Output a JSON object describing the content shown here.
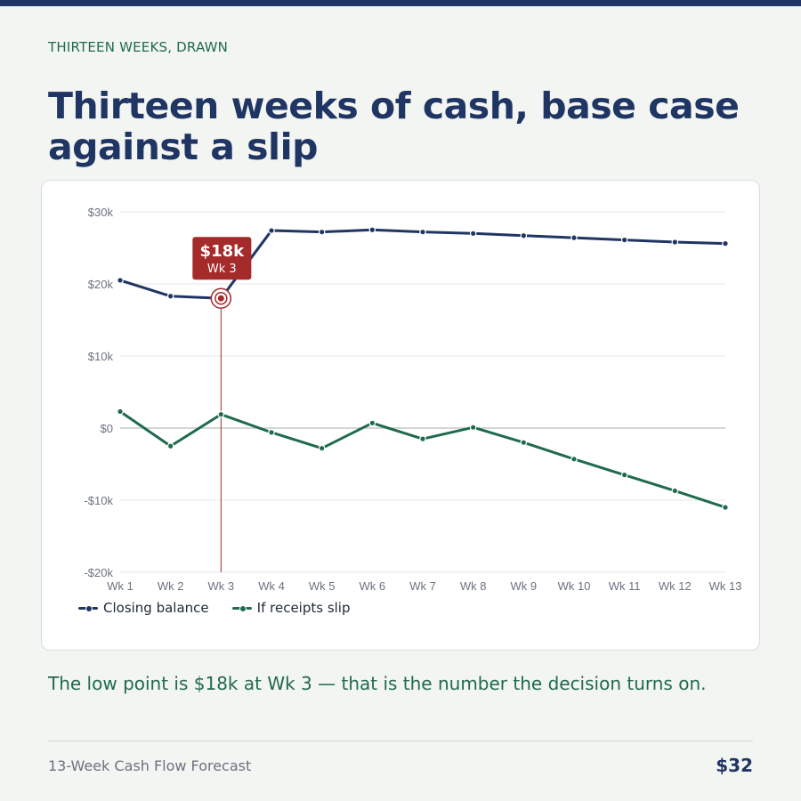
{
  "page": {
    "eyebrow": "THIRTEEN WEEKS, DRAWN",
    "headline": "Thirteen weeks of cash, base case against a slip",
    "takeaway": "The low point is $18k at Wk 3 — that is the number the decision turns on.",
    "footer_left": "13-Week Cash Flow Forecast",
    "footer_right": "$32"
  },
  "colors": {
    "navy": "#1f3563",
    "green": "#1f6b4c",
    "highlight": "#a52a2a"
  },
  "chart_data": {
    "type": "line",
    "categories": [
      "Wk 1",
      "Wk 2",
      "Wk 3",
      "Wk 4",
      "Wk 5",
      "Wk 6",
      "Wk 7",
      "Wk 8",
      "Wk 9",
      "Wk 10",
      "Wk 11",
      "Wk 12",
      "Wk 13"
    ],
    "y_ticks": [
      {
        "value": 30000,
        "label": "$30k"
      },
      {
        "value": 20000,
        "label": "$20k"
      },
      {
        "value": 10000,
        "label": "$10k"
      },
      {
        "value": 0,
        "label": "$0"
      },
      {
        "value": -10000,
        "label": "-$10k"
      },
      {
        "value": -20000,
        "label": "-$20k"
      }
    ],
    "ylim": [
      -20000,
      30000
    ],
    "grid": true,
    "legend_position": "bottom-left",
    "series": [
      {
        "name": "Closing balance",
        "color": "#1f3563",
        "values": [
          20500,
          18300,
          18000,
          27400,
          27200,
          27500,
          27200,
          27000,
          26700,
          26400,
          26100,
          25800,
          25600
        ]
      },
      {
        "name": "If receipts slip",
        "color": "#1f6b4c",
        "values": [
          2300,
          -2500,
          1900,
          -600,
          -2800,
          700,
          -1500,
          100,
          -2000,
          -4300,
          -6500,
          -8700,
          -11000
        ]
      }
    ],
    "annotation": {
      "series_index": 0,
      "point_index": 2,
      "value_label": "$18k",
      "category_label": "Wk 3"
    }
  }
}
